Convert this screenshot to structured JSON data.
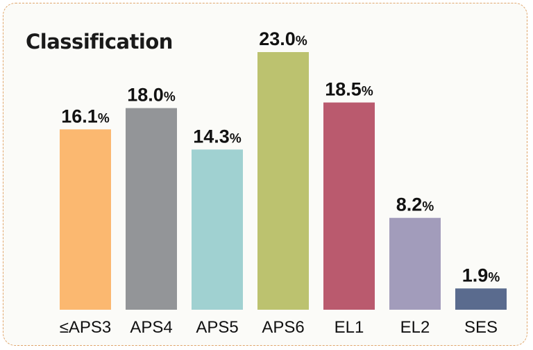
{
  "chart_data": {
    "type": "bar",
    "title": "Classification",
    "xlabel": "",
    "ylabel": "",
    "categories": [
      "≤APS3",
      "APS4",
      "APS5",
      "APS6",
      "EL1",
      "EL2",
      "SES"
    ],
    "values": [
      16.1,
      18.0,
      14.3,
      23.0,
      18.5,
      8.2,
      1.9
    ],
    "value_labels": [
      "16.1",
      "18.0",
      "14.3",
      "23.0",
      "18.5",
      "8.2",
      "1.9"
    ],
    "unit": "%",
    "colors": [
      "#fbb870",
      "#939598",
      "#a0d1d1",
      "#bcc26f",
      "#ba5a6e",
      "#a29cbb",
      "#5a6b8e"
    ],
    "ylim": [
      0,
      23
    ],
    "grid": false,
    "legend": "none"
  }
}
